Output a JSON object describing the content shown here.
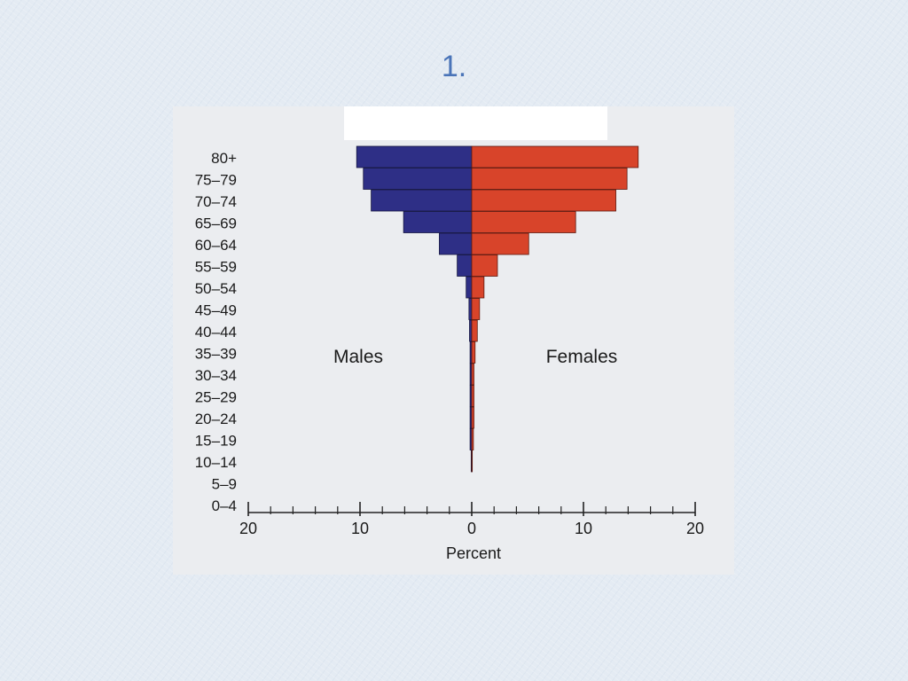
{
  "slide": {
    "number_label": "1."
  },
  "colors": {
    "males": "#2e2f86",
    "females": "#d8442a",
    "axis": "#222222"
  },
  "chart_data": {
    "type": "bar",
    "title": "",
    "xlabel": "Percent",
    "ylabel": "",
    "side_labels": {
      "left": "Males",
      "right": "Females"
    },
    "categories": [
      "80+",
      "75–79",
      "70–74",
      "65–69",
      "60–64",
      "55–59",
      "50–54",
      "45–49",
      "40–44",
      "35–39",
      "30–34",
      "25–29",
      "20–24",
      "15–19",
      "10–14",
      "5–9",
      "0–4"
    ],
    "series": [
      {
        "name": "Males",
        "values": [
          10.3,
          9.7,
          9.0,
          6.1,
          2.9,
          1.3,
          0.5,
          0.25,
          0.2,
          0.15,
          0.15,
          0.15,
          0.15,
          0.15,
          0.05,
          0.0,
          0.0
        ]
      },
      {
        "name": "Females",
        "values": [
          14.9,
          13.9,
          12.9,
          9.3,
          5.1,
          2.3,
          1.1,
          0.7,
          0.5,
          0.3,
          0.2,
          0.2,
          0.2,
          0.15,
          0.05,
          0.0,
          0.0
        ]
      }
    ],
    "xlim": [
      -20,
      20
    ],
    "major_ticks": [
      -20,
      -10,
      0,
      10,
      20
    ],
    "tick_labels": [
      "20",
      "10",
      "0",
      "10",
      "20"
    ],
    "minor_tick_step": 2,
    "grid": false
  }
}
